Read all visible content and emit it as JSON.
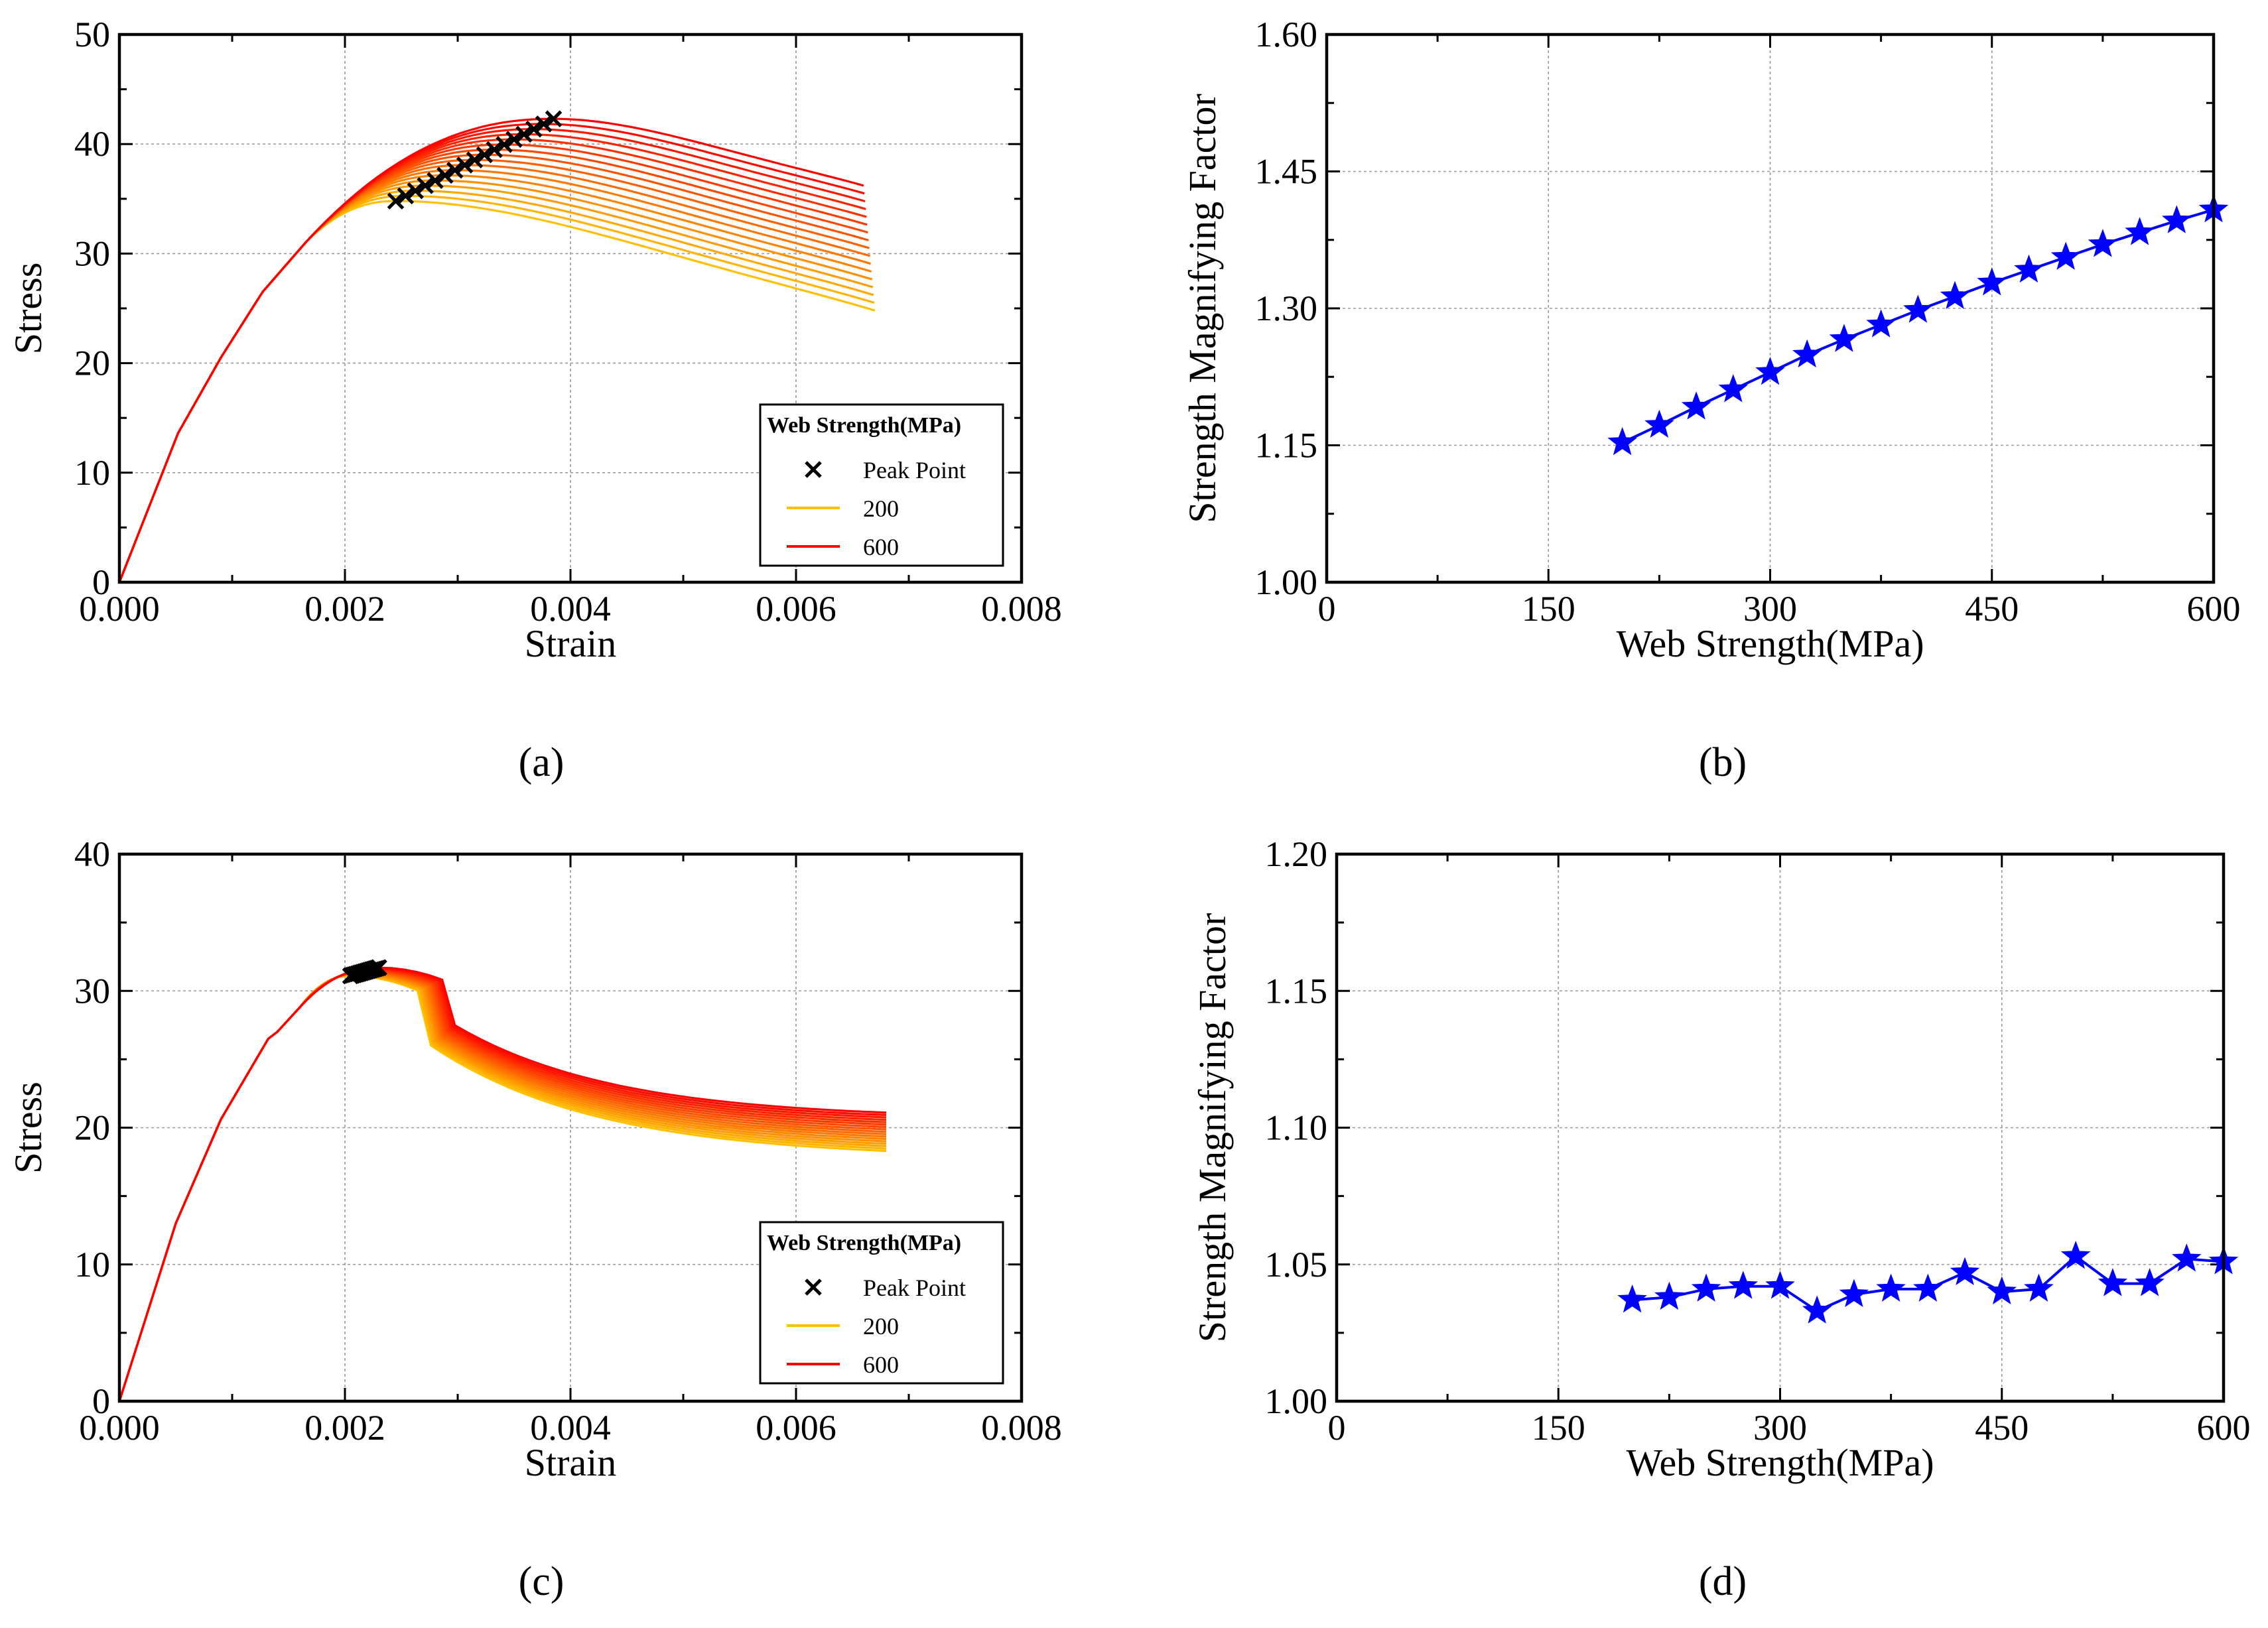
{
  "chart_data": [
    {
      "id": "a",
      "type": "line",
      "caption": "(a)",
      "xlabel": "Strain",
      "ylabel": "Stress",
      "xlim": [
        0,
        0.008
      ],
      "ylim": [
        0,
        50
      ],
      "xticks": [
        "0.000",
        "0.002",
        "0.004",
        "0.006",
        "0.008"
      ],
      "yticks": [
        "0",
        "10",
        "20",
        "30",
        "40",
        "50"
      ],
      "grid": true,
      "legend": {
        "title": "Web Strength(MPa)",
        "placement": "bottom-right",
        "entries": [
          {
            "label": "Peak Point",
            "kind": "marker",
            "color": "#000000"
          },
          {
            "label": "200",
            "kind": "line",
            "color": "#FFC000"
          },
          {
            "label": "600",
            "kind": "line",
            "color": "#FF0000"
          }
        ]
      },
      "series_family": {
        "web_strength_from": 200,
        "web_strength_to": 600,
        "curve_count": 17,
        "color_from": "#FFC000",
        "color_to": "#FF0000",
        "peak_strain_range": [
          0.00245,
          0.00385
        ],
        "peak_stress_range": [
          34.8,
          42.3
        ],
        "end_strain_range": [
          0.0067,
          0.0066
        ],
        "end_stress_range": [
          24.8,
          36.2
        ]
      }
    },
    {
      "id": "b",
      "type": "line",
      "caption": "(b)",
      "xlabel": "Web Strength(MPa)",
      "ylabel": "Strength Magnifying Factor",
      "xlim": [
        0,
        600
      ],
      "ylim": [
        1.0,
        1.6
      ],
      "xticks": [
        "0",
        "150",
        "300",
        "450",
        "600"
      ],
      "yticks": [
        "1.00",
        "1.15",
        "1.30",
        "1.45",
        "1.60"
      ],
      "grid": true,
      "series": [
        {
          "name": "Strength Magnifying Factor",
          "color": "#0000FF",
          "marker": "star",
          "x": [
            200,
            225,
            250,
            275,
            300,
            325,
            350,
            375,
            400,
            425,
            450,
            475,
            500,
            525,
            550,
            575,
            600
          ],
          "y": [
            1.153,
            1.172,
            1.192,
            1.211,
            1.23,
            1.249,
            1.266,
            1.282,
            1.298,
            1.313,
            1.328,
            1.342,
            1.356,
            1.37,
            1.383,
            1.396,
            1.408
          ]
        }
      ]
    },
    {
      "id": "c",
      "type": "line",
      "caption": "(c)",
      "xlabel": "Strain",
      "ylabel": "Stress",
      "xlim": [
        0,
        0.008
      ],
      "ylim": [
        0,
        40
      ],
      "xticks": [
        "0.000",
        "0.002",
        "0.004",
        "0.006",
        "0.008"
      ],
      "yticks": [
        "0",
        "10",
        "20",
        "30",
        "40"
      ],
      "grid": true,
      "legend": {
        "title": "Web Strength(MPa)",
        "placement": "bottom-right",
        "entries": [
          {
            "label": "Peak Point",
            "kind": "marker",
            "color": "#000000"
          },
          {
            "label": "200",
            "kind": "line",
            "color": "#FFC000"
          },
          {
            "label": "600",
            "kind": "line",
            "color": "#FF0000"
          }
        ]
      },
      "series_family": {
        "web_strength_from": 200,
        "web_strength_to": 600,
        "curve_count": 17,
        "color_from": "#FFC000",
        "color_to": "#FF0000",
        "peak_strain_range": [
          0.00205,
          0.0023
        ],
        "peak_stress_range": [
          31.1,
          31.7
        ],
        "end_strain_range": [
          0.0068,
          0.0068
        ],
        "end_stress_range": [
          18.3,
          21.1
        ]
      }
    },
    {
      "id": "d",
      "type": "line",
      "caption": "(d)",
      "xlabel": "Web Strength(MPa)",
      "ylabel": "Strength Magnifying Factor",
      "xlim": [
        0,
        600
      ],
      "ylim": [
        1.0,
        1.2
      ],
      "xticks": [
        "0",
        "150",
        "300",
        "450",
        "600"
      ],
      "yticks": [
        "1.00",
        "1.05",
        "1.10",
        "1.15",
        "1.20"
      ],
      "grid": true,
      "series": [
        {
          "name": "Strength Magnifying Factor",
          "color": "#0000FF",
          "marker": "star",
          "x": [
            200,
            225,
            250,
            275,
            300,
            325,
            350,
            375,
            400,
            425,
            450,
            475,
            500,
            525,
            550,
            575,
            600
          ],
          "y": [
            1.037,
            1.038,
            1.041,
            1.042,
            1.042,
            1.033,
            1.039,
            1.041,
            1.041,
            1.047,
            1.04,
            1.041,
            1.053,
            1.043,
            1.043,
            1.052,
            1.051
          ]
        }
      ]
    }
  ]
}
